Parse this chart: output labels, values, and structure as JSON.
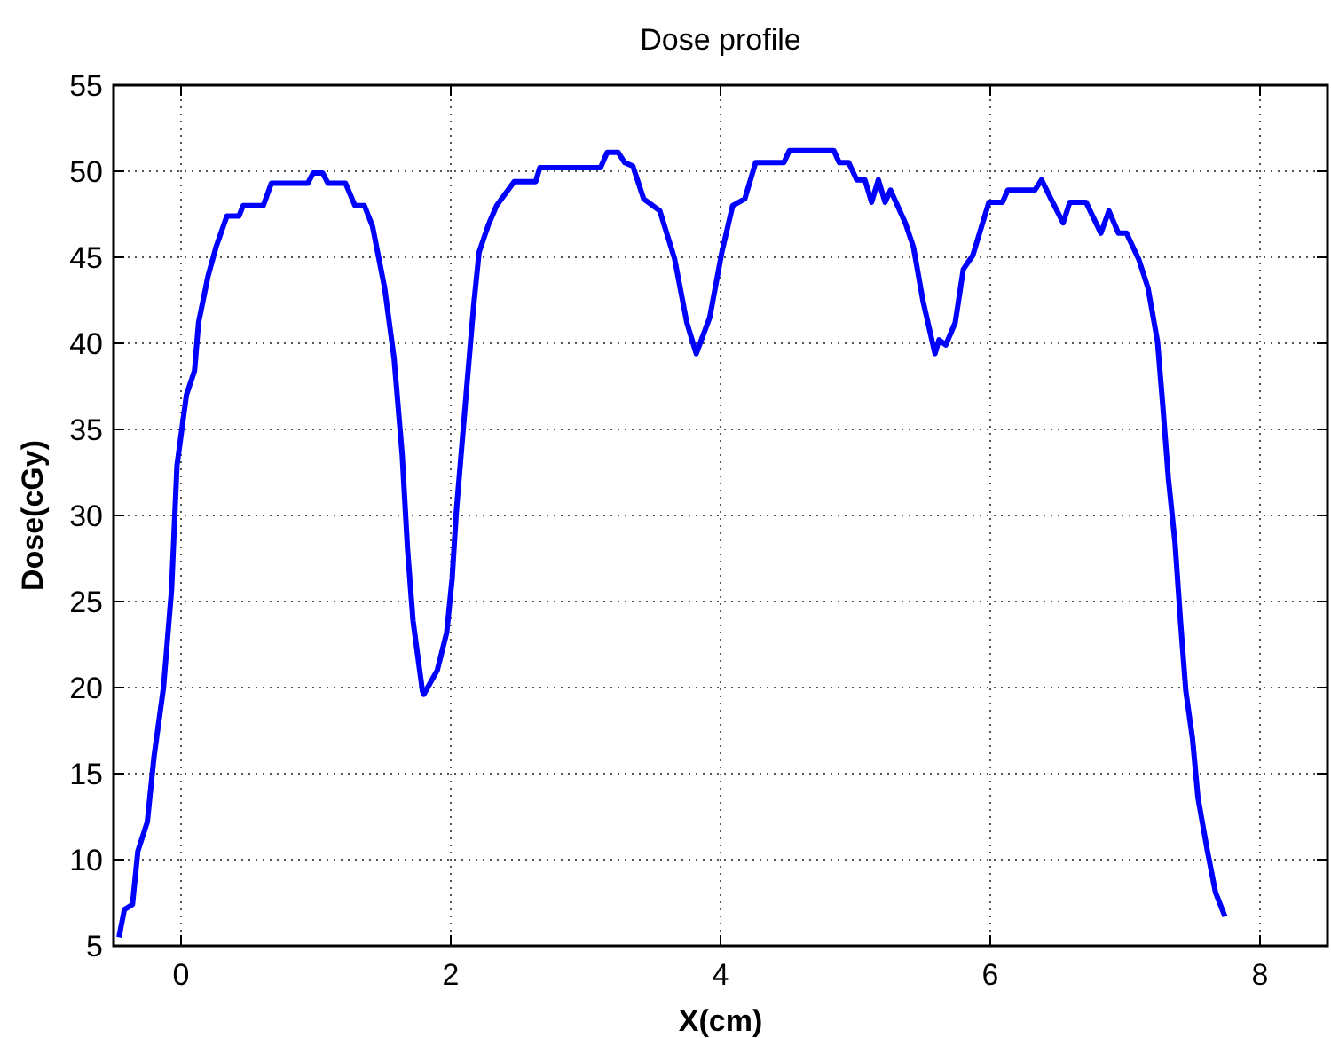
{
  "chart_data": {
    "type": "line",
    "title": "Dose profile",
    "xlabel": "X(cm)",
    "ylabel": "Dose(cGy)",
    "xlim": [
      -0.5,
      8.5
    ],
    "xticks": [
      0,
      2,
      4,
      6,
      8
    ],
    "ylim": [
      5,
      55
    ],
    "yticks": [
      5,
      10,
      15,
      20,
      25,
      30,
      35,
      40,
      45,
      50,
      55
    ],
    "grid": true,
    "line_style": "solid",
    "marker": "none",
    "series": [
      {
        "color": "#0000ff",
        "x": [
          -0.46,
          -0.42,
          -0.36,
          -0.32,
          -0.25,
          -0.2,
          -0.13,
          -0.07,
          -0.03,
          0.04,
          0.1,
          0.13,
          0.2,
          0.26,
          0.34,
          0.43,
          0.46,
          0.61,
          0.67,
          0.94,
          0.98,
          1.05,
          1.09,
          1.22,
          1.29,
          1.36,
          1.42,
          1.51,
          1.58,
          1.64,
          1.68,
          1.72,
          1.79,
          1.8,
          1.9,
          1.97,
          2.01,
          2.04,
          2.12,
          2.17,
          2.21,
          2.28,
          2.34,
          2.47,
          2.63,
          2.66,
          3.11,
          3.16,
          3.24,
          3.29,
          3.35,
          3.43,
          3.55,
          3.66,
          3.75,
          3.82,
          3.92,
          4.01,
          4.09,
          4.18,
          4.26,
          4.47,
          4.51,
          4.84,
          4.88,
          4.95,
          5.01,
          5.07,
          5.12,
          5.17,
          5.22,
          5.26,
          5.37,
          5.43,
          5.5,
          5.59,
          5.62,
          5.67,
          5.74,
          5.8,
          5.87,
          5.99,
          6.09,
          6.13,
          6.33,
          6.38,
          6.45,
          6.54,
          6.59,
          6.71,
          6.82,
          6.88,
          6.95,
          7.01,
          7.1,
          7.17,
          7.24,
          7.28,
          7.32,
          7.37,
          7.41,
          7.45,
          7.5,
          7.54,
          7.61,
          7.67,
          7.74
        ],
        "values": [
          5.5,
          7.1,
          7.4,
          10.5,
          12.2,
          16,
          20,
          25.7,
          32.9,
          37,
          38.4,
          41.2,
          43.9,
          45.6,
          47.4,
          47.4,
          48,
          48,
          49.3,
          49.3,
          49.9,
          49.9,
          49.3,
          49.3,
          48,
          48,
          46.8,
          43.2,
          39.1,
          33.5,
          28,
          23.9,
          19.8,
          19.6,
          21,
          23.2,
          26.3,
          30.1,
          37.6,
          42.2,
          45.3,
          46.9,
          48,
          49.4,
          49.4,
          50.2,
          50.2,
          51.1,
          51.1,
          50.5,
          50.3,
          48.4,
          47.7,
          44.9,
          41.2,
          39.4,
          41.5,
          45.3,
          48,
          48.4,
          50.5,
          50.5,
          51.2,
          51.2,
          50.5,
          50.5,
          49.5,
          49.5,
          48.2,
          49.5,
          48.2,
          48.9,
          47,
          45.6,
          42.5,
          39.4,
          40.2,
          39.9,
          41.2,
          44.3,
          45.1,
          48.2,
          48.2,
          48.9,
          48.9,
          49.5,
          48.4,
          47,
          48.2,
          48.2,
          46.4,
          47.7,
          46.4,
          46.4,
          44.9,
          43.2,
          40.1,
          36.3,
          32.2,
          28.4,
          23.9,
          19.8,
          17,
          13.6,
          10.5,
          8.1,
          6.7
        ]
      }
    ]
  }
}
